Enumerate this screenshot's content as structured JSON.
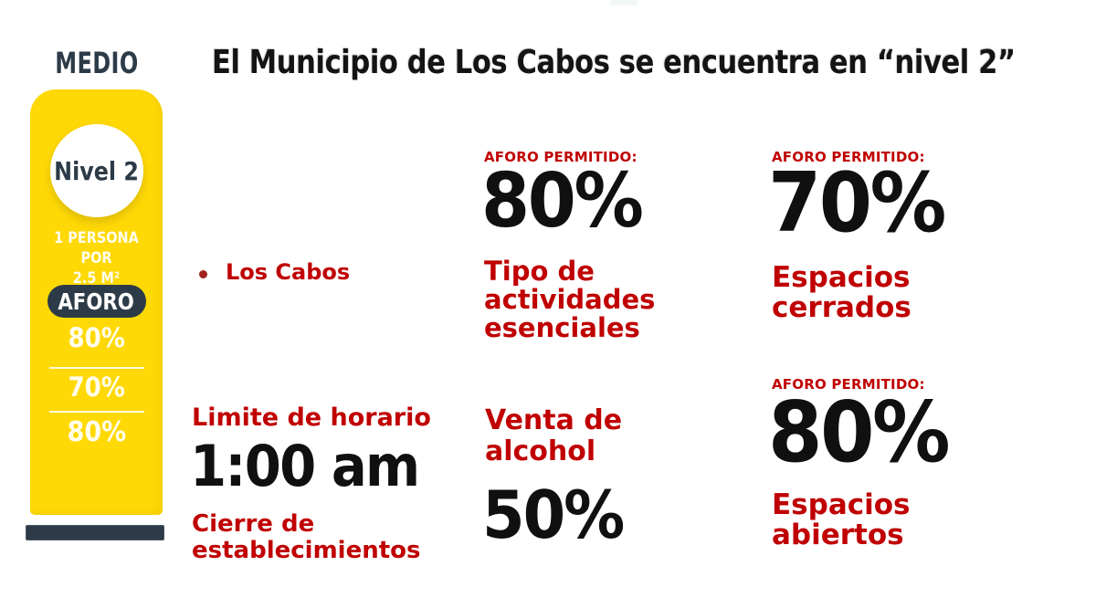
{
  "header": {
    "title": "El Municipio de Los Cabos se encuentra en “nivel 2”"
  },
  "level_panel": {
    "category": "MEDIO",
    "level": "Nivel 2",
    "density": "1 PERSONA POR\n2.5 M²",
    "capacity_label": "AFORO",
    "capacity_values": [
      "80%",
      "70%",
      "80%"
    ]
  },
  "municipality_bullet": "Los Cabos",
  "cards": {
    "schedule": {
      "label": "Limite de horario",
      "value": "1:00 am",
      "caption": "Cierre de\nestablecimientos"
    },
    "essential_activities": {
      "label": "AFORO PERMITIDO:",
      "value": "80%",
      "caption": "Tipo de\nactividades\nesenciales"
    },
    "alcohol": {
      "title": "Venta de\nalcohol",
      "value": "50%"
    },
    "closed_spaces": {
      "label": "AFORO PERMITIDO:",
      "value": "70%",
      "caption": "Espacios\ncerrados"
    },
    "open_spaces": {
      "label": "AFORO PERMITIDO:",
      "value": "80%",
      "caption": "Espacios\nabiertos"
    }
  },
  "colors": {
    "yellow": "#ffd906",
    "navy": "#2d3b48",
    "red": "#c00000",
    "black": "#101010"
  }
}
